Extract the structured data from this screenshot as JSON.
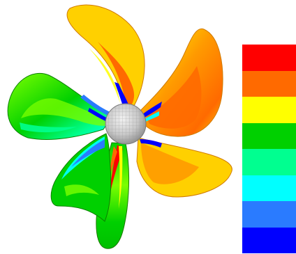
{
  "figure": {
    "kind": "propeller surface contour plot",
    "blade_count": 5,
    "hub_pattern": "mesh"
  },
  "colors": {
    "background": "#ffffff",
    "hub_fill": "#cfcfcf",
    "hub_mesh": "#9a9a9a",
    "outline": "#3a3a3a"
  },
  "legend": {
    "orientation": "vertical",
    "placement": "right",
    "has_tick_labels": false,
    "bands": [
      {
        "color": "#ff0000"
      },
      {
        "color": "#ff6a00"
      },
      {
        "color": "#ffff00"
      },
      {
        "color": "#00d000"
      },
      {
        "color": "#00ff90"
      },
      {
        "color": "#00ffff"
      },
      {
        "color": "#2a7bff"
      },
      {
        "color": "#0000ff"
      }
    ]
  }
}
